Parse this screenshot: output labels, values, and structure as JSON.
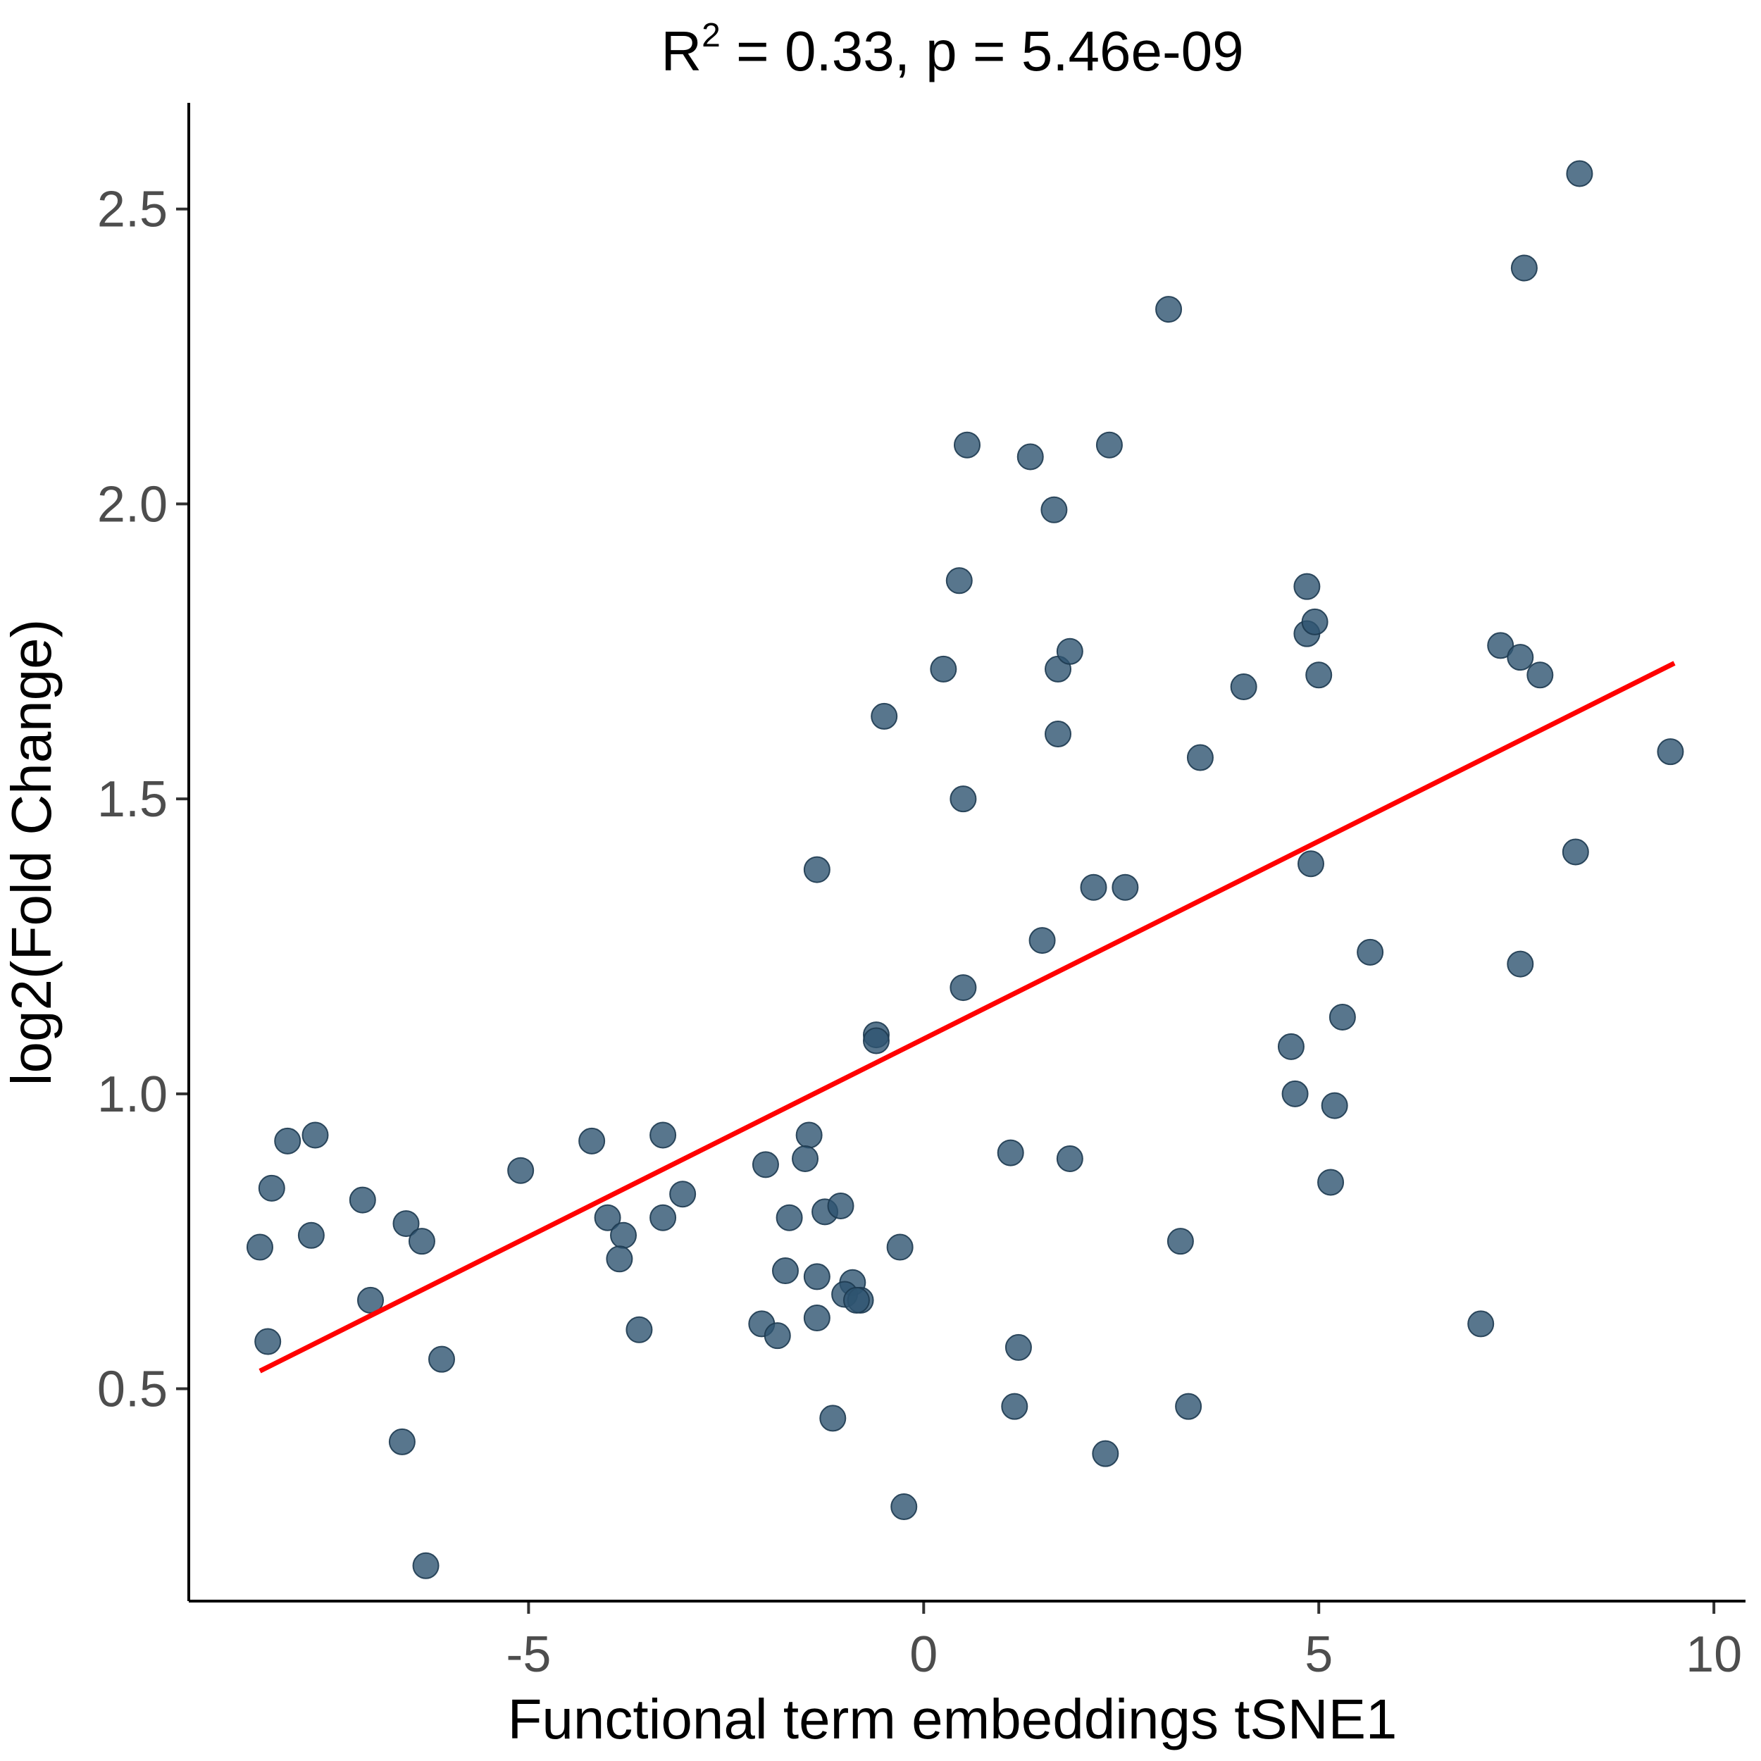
{
  "chart_data": {
    "type": "scatter",
    "title": {
      "prefix": "R",
      "superscript": "2",
      "suffix": " = 0.33, p = 5.46e-09"
    },
    "xlabel": "Functional term embeddings tSNE1",
    "ylabel": "log2(Fold Change)",
    "xlim": [
      -9.3,
      10.4
    ],
    "ylim": [
      0.14,
      2.68
    ],
    "x_ticks": [
      {
        "value": -5,
        "label": "-5"
      },
      {
        "value": 0,
        "label": "0"
      },
      {
        "value": 5,
        "label": "5"
      },
      {
        "value": 10,
        "label": "10"
      }
    ],
    "y_ticks": [
      {
        "value": 0.5,
        "label": "0.5"
      },
      {
        "value": 1.0,
        "label": "1.0"
      },
      {
        "value": 1.5,
        "label": "1.5"
      },
      {
        "value": 2.0,
        "label": "2.0"
      },
      {
        "value": 2.5,
        "label": "2.5"
      }
    ],
    "grid": false,
    "legend": "none",
    "point_color": "#2e5470",
    "point_opacity": 0.8,
    "trend_line_color": "#ff0000",
    "trend_line": {
      "x": [
        -8.4,
        9.5
      ],
      "y": [
        0.53,
        1.73
      ]
    },
    "points": [
      {
        "x": -8.4,
        "y": 0.74
      },
      {
        "x": -8.3,
        "y": 0.58
      },
      {
        "x": -8.25,
        "y": 0.84
      },
      {
        "x": -8.05,
        "y": 0.92
      },
      {
        "x": -7.7,
        "y": 0.93
      },
      {
        "x": -7.75,
        "y": 0.76
      },
      {
        "x": -7.1,
        "y": 0.82
      },
      {
        "x": -7.0,
        "y": 0.65
      },
      {
        "x": -6.55,
        "y": 0.78
      },
      {
        "x": -6.35,
        "y": 0.75
      },
      {
        "x": -6.6,
        "y": 0.41
      },
      {
        "x": -6.3,
        "y": 0.2
      },
      {
        "x": -6.1,
        "y": 0.55
      },
      {
        "x": -5.1,
        "y": 0.87
      },
      {
        "x": -4.2,
        "y": 0.92
      },
      {
        "x": -4.0,
        "y": 0.79
      },
      {
        "x": -3.8,
        "y": 0.76
      },
      {
        "x": -3.85,
        "y": 0.72
      },
      {
        "x": -3.3,
        "y": 0.93
      },
      {
        "x": -3.3,
        "y": 0.79
      },
      {
        "x": -3.05,
        "y": 0.83
      },
      {
        "x": -3.6,
        "y": 0.6
      },
      {
        "x": -2.0,
        "y": 0.88
      },
      {
        "x": -2.05,
        "y": 0.61
      },
      {
        "x": -1.85,
        "y": 0.59
      },
      {
        "x": -1.7,
        "y": 0.79
      },
      {
        "x": -1.75,
        "y": 0.7
      },
      {
        "x": -1.45,
        "y": 0.93
      },
      {
        "x": -1.5,
        "y": 0.89
      },
      {
        "x": -1.35,
        "y": 0.69
      },
      {
        "x": -1.35,
        "y": 0.62
      },
      {
        "x": -1.35,
        "y": 1.38
      },
      {
        "x": -1.25,
        "y": 0.8
      },
      {
        "x": -1.05,
        "y": 0.81
      },
      {
        "x": -0.9,
        "y": 0.68
      },
      {
        "x": -1.0,
        "y": 0.66
      },
      {
        "x": -0.8,
        "y": 0.65
      },
      {
        "x": -0.85,
        "y": 0.65
      },
      {
        "x": -1.15,
        "y": 0.45
      },
      {
        "x": -0.6,
        "y": 1.1
      },
      {
        "x": -0.6,
        "y": 1.09
      },
      {
        "x": -0.5,
        "y": 1.64
      },
      {
        "x": -0.3,
        "y": 0.74
      },
      {
        "x": -0.25,
        "y": 0.3
      },
      {
        "x": 0.25,
        "y": 1.72
      },
      {
        "x": 0.45,
        "y": 1.87
      },
      {
        "x": 0.55,
        "y": 2.1
      },
      {
        "x": 0.5,
        "y": 1.5
      },
      {
        "x": 0.5,
        "y": 1.18
      },
      {
        "x": 1.1,
        "y": 0.9
      },
      {
        "x": 1.2,
        "y": 0.57
      },
      {
        "x": 1.15,
        "y": 0.47
      },
      {
        "x": 1.35,
        "y": 2.08
      },
      {
        "x": 1.5,
        "y": 1.26
      },
      {
        "x": 1.65,
        "y": 1.99
      },
      {
        "x": 1.7,
        "y": 1.72
      },
      {
        "x": 1.7,
        "y": 1.61
      },
      {
        "x": 1.85,
        "y": 1.75
      },
      {
        "x": 1.85,
        "y": 0.89
      },
      {
        "x": 2.15,
        "y": 1.35
      },
      {
        "x": 2.35,
        "y": 2.1
      },
      {
        "x": 2.55,
        "y": 1.35
      },
      {
        "x": 2.3,
        "y": 0.39
      },
      {
        "x": 3.1,
        "y": 2.33
      },
      {
        "x": 3.25,
        "y": 0.75
      },
      {
        "x": 3.35,
        "y": 0.47
      },
      {
        "x": 3.5,
        "y": 1.57
      },
      {
        "x": 4.05,
        "y": 1.69
      },
      {
        "x": 4.65,
        "y": 1.08
      },
      {
        "x": 4.7,
        "y": 1.0
      },
      {
        "x": 4.85,
        "y": 1.86
      },
      {
        "x": 4.85,
        "y": 1.78
      },
      {
        "x": 4.95,
        "y": 1.8
      },
      {
        "x": 5.0,
        "y": 1.71
      },
      {
        "x": 4.9,
        "y": 1.39
      },
      {
        "x": 5.15,
        "y": 0.85
      },
      {
        "x": 5.2,
        "y": 0.98
      },
      {
        "x": 5.3,
        "y": 1.13
      },
      {
        "x": 5.65,
        "y": 1.24
      },
      {
        "x": 7.05,
        "y": 0.61
      },
      {
        "x": 7.3,
        "y": 1.76
      },
      {
        "x": 7.55,
        "y": 1.74
      },
      {
        "x": 7.8,
        "y": 1.71
      },
      {
        "x": 7.55,
        "y": 1.22
      },
      {
        "x": 7.6,
        "y": 2.4
      },
      {
        "x": 8.3,
        "y": 2.56
      },
      {
        "x": 8.25,
        "y": 1.41
      },
      {
        "x": 9.45,
        "y": 1.58
      }
    ]
  }
}
